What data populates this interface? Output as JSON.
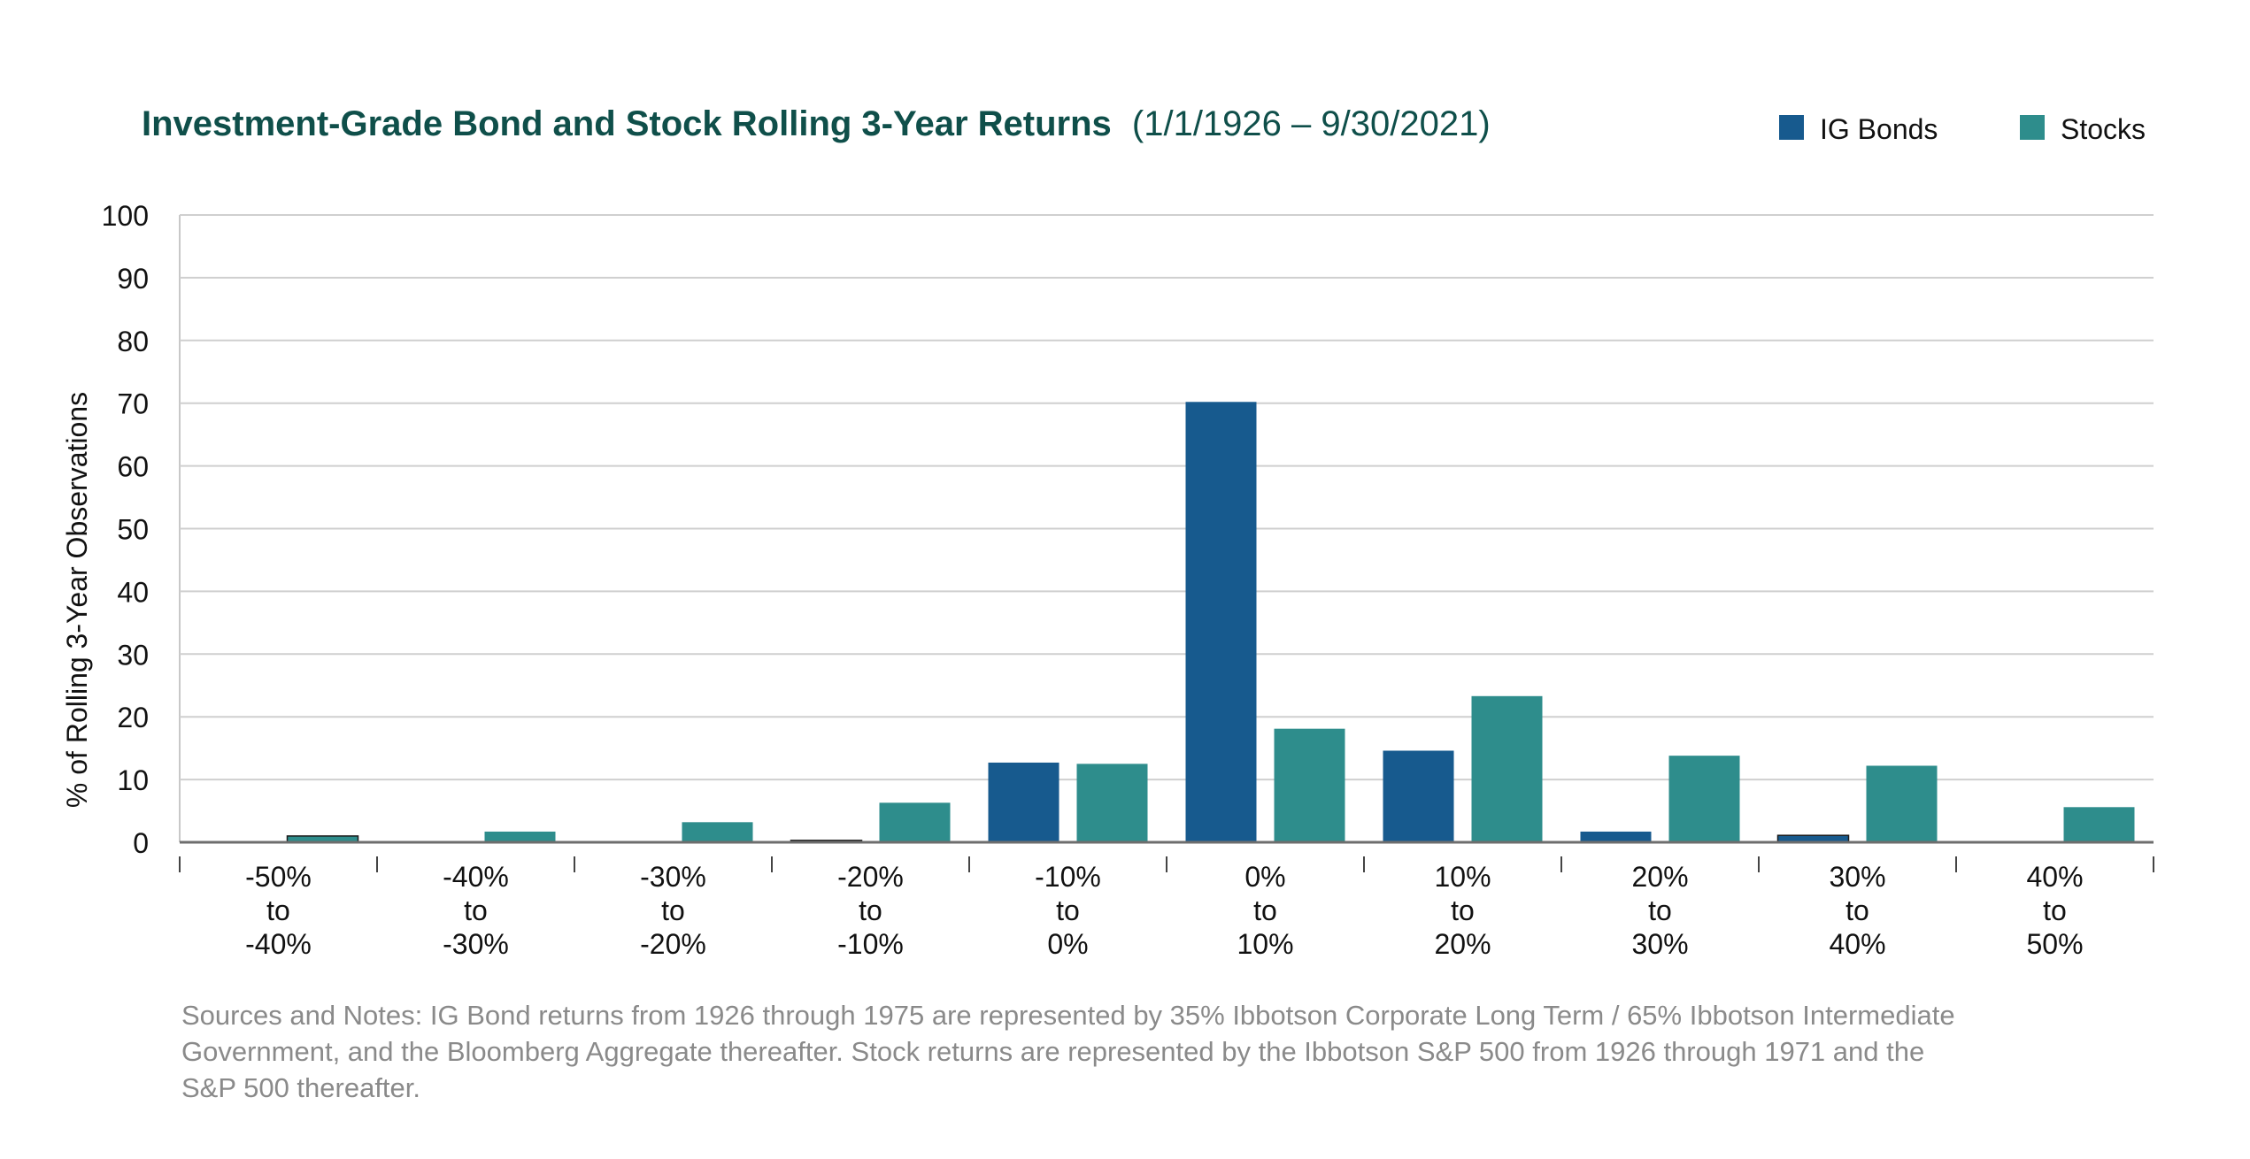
{
  "chart_data": {
    "type": "bar",
    "title": "Investment-Grade Bond and Stock Rolling 3-Year Returns",
    "subtitle": "(1/1/1926 – 9/30/2021)",
    "ylabel": "% of Rolling 3-Year Observations",
    "xlabel": "",
    "ylim": [
      0,
      100
    ],
    "yticks": [
      "0",
      "10",
      "20",
      "30",
      "40",
      "50",
      "60",
      "70",
      "80",
      "90",
      "100"
    ],
    "grid": true,
    "legend_position": "top-right",
    "categories": [
      [
        "-50%",
        "to",
        "-40%"
      ],
      [
        "-40%",
        "to",
        "-30%"
      ],
      [
        "-30%",
        "to",
        "-20%"
      ],
      [
        "-20%",
        "to",
        "-10%"
      ],
      [
        "-10%",
        "to",
        "0%"
      ],
      [
        "0%",
        "to",
        "10%"
      ],
      [
        "10%",
        "to",
        "20%"
      ],
      [
        "20%",
        "to",
        "30%"
      ],
      [
        "30%",
        "to",
        "40%"
      ],
      [
        "40%",
        "to",
        "50%"
      ]
    ],
    "series": [
      {
        "name": "IG Bonds",
        "color": "#175a8e",
        "values": [
          0,
          0,
          0,
          0.3,
          12.7,
          70.2,
          14.6,
          1.7,
          1.1,
          0
        ]
      },
      {
        "name": "Stocks",
        "color": "#2e8d8c",
        "values": [
          1.0,
          1.7,
          3.2,
          6.3,
          12.5,
          18.1,
          23.3,
          13.8,
          12.2,
          5.6
        ]
      }
    ],
    "notes": [
      "Sources and Notes: IG Bond returns from 1926 through 1975 are represented by 35% Ibbotson Corporate Long Term / 65% Ibbotson Intermediate",
      "Government, and the Bloomberg Aggregate thereafter. Stock returns are represented by the Ibbotson S&P 500 from 1926 through 1971 and the",
      "S&P 500 thereafter."
    ]
  }
}
